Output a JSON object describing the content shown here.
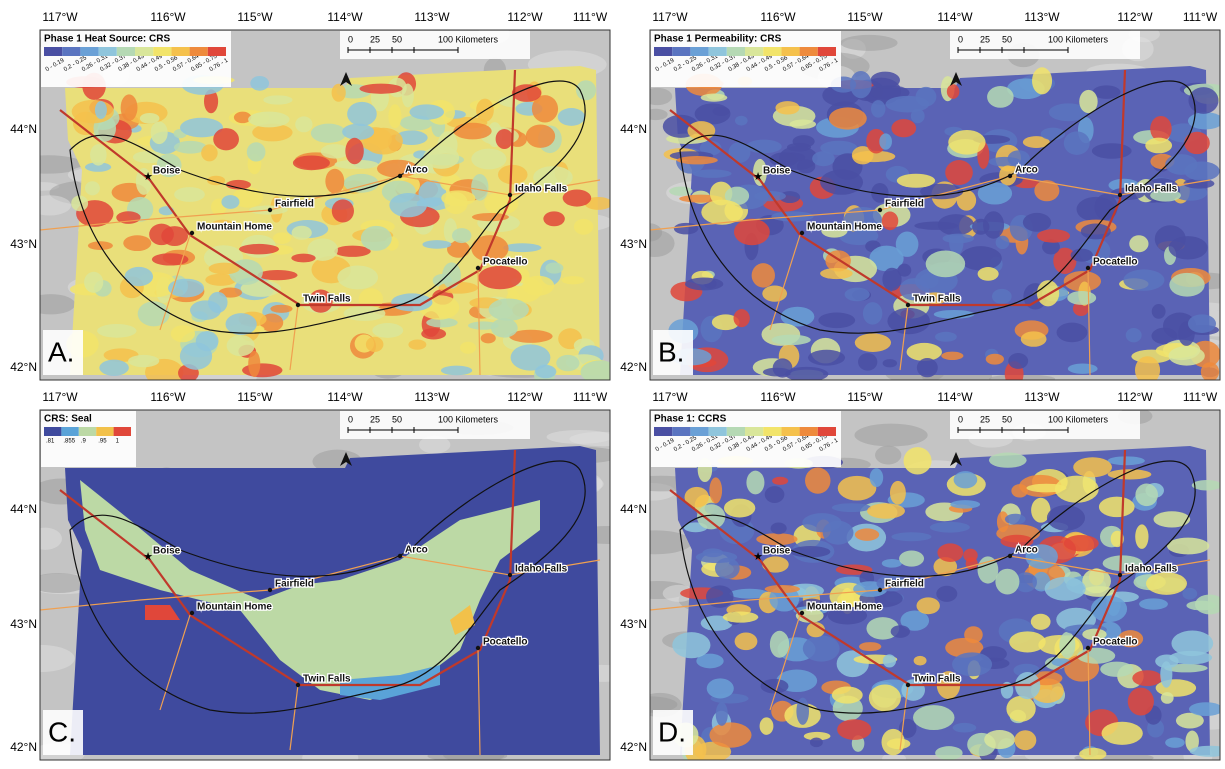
{
  "figure": {
    "longitude_labels": [
      "117°W",
      "116°W",
      "115°W",
      "114°W",
      "113°W",
      "112°W",
      "111°W"
    ],
    "latitude_labels": [
      "44°N",
      "43°N",
      "42°N"
    ],
    "scale_labels": [
      "0",
      "25",
      "50",
      "100 Kilometers"
    ],
    "cities": [
      "Boise",
      "Mountain Home",
      "Fairfield",
      "Arco",
      "Idaho Falls",
      "Pocatello",
      "Twin Falls"
    ],
    "panels": [
      {
        "letter": "A.",
        "title": "Phase 1 Heat Source: CRS",
        "legend": [
          "0 - 0.19",
          "0.2 - 0.25",
          "0.26 - 0.31",
          "0.32 - 0.37",
          "0.38 - 0.43",
          "0.44 - 0.49",
          "0.5 - 0.56",
          "0.57 - 0.64",
          "0.65 - 0.75",
          "0.76 - 1"
        ]
      },
      {
        "letter": "B.",
        "title": "Phase 1 Permeability: CRS",
        "legend": [
          "0 - 0.19",
          "0.2 - 0.25",
          "0.26 - 0.31",
          "0.32 - 0.37",
          "0.38 - 0.43",
          "0.44 - 0.49",
          "0.5 - 0.56",
          "0.57 - 0.64",
          "0.65 - 0.75",
          "0.76 - 1"
        ]
      },
      {
        "letter": "C.",
        "title": "CRS: Seal",
        "legend": [
          ".81",
          ".855",
          ".9",
          ".95",
          "1"
        ]
      },
      {
        "letter": "D.",
        "title": "Phase 1: CCRS",
        "legend": [
          "0 - 0.19",
          "0.2 - 0.25",
          "0.26 - 0.31",
          "0.32 - 0.37",
          "0.38 - 0.43",
          "0.44 - 0.49",
          "0.5 - 0.56",
          "0.57 - 0.64",
          "0.65 - 0.75",
          "0.76 - 1"
        ]
      }
    ]
  }
}
